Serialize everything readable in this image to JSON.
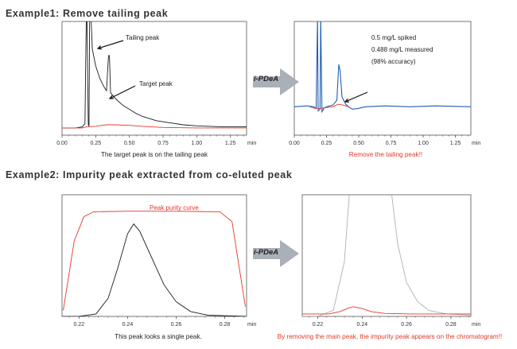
{
  "titles": {
    "example1": "Example1: Remove tailing peak",
    "example2": "Example2: Impurity peak extracted from co-eluted peak"
  },
  "arrow_label": "i-PDeA",
  "captions": {
    "c1": "The target peak is on the tailing peak",
    "c2": "Remove the tailing peak!!",
    "c3": "This peak looks a single peak.",
    "c4": "By removing the main peak, the impurity peak appears on the chromatogram!!"
  },
  "colors": {
    "axis": "#555555",
    "black_trace": "#1a1a1a",
    "red_trace": "#e8352a",
    "blue_trace": "#1f5fb0",
    "grey_trace": "#b0b0b0",
    "arrow_grey": "#aab0b8",
    "caption_red": "#e23a2a"
  },
  "chart_data": [
    {
      "id": "panel1",
      "type": "line",
      "xlabel": "min",
      "xlim": [
        0.0,
        1.37
      ],
      "xticks": [
        "0.00",
        "0.25",
        "0.50",
        "0.75",
        "1.00",
        "1.25"
      ],
      "annotations": [
        "Tailing peak",
        "Target peak"
      ],
      "series": [
        {
          "color": "black",
          "points": [
            [
              0.0,
              0.02
            ],
            [
              0.1,
              0.02
            ],
            [
              0.15,
              0.03
            ],
            [
              0.17,
              0.06
            ],
            [
              0.18,
              1.1
            ],
            [
              0.185,
              1.1
            ],
            [
              0.195,
              0.05
            ],
            [
              0.2,
              0.04
            ],
            [
              0.205,
              1.1
            ],
            [
              0.215,
              1.1
            ],
            [
              0.225,
              0.78
            ],
            [
              0.25,
              0.62
            ],
            [
              0.28,
              0.5
            ],
            [
              0.31,
              0.42
            ],
            [
              0.33,
              0.38
            ],
            [
              0.345,
              0.72
            ],
            [
              0.352,
              0.72
            ],
            [
              0.36,
              0.36
            ],
            [
              0.4,
              0.3
            ],
            [
              0.45,
              0.24
            ],
            [
              0.5,
              0.2
            ],
            [
              0.55,
              0.16
            ],
            [
              0.6,
              0.13
            ],
            [
              0.7,
              0.09
            ],
            [
              0.8,
              0.07
            ],
            [
              0.9,
              0.05
            ],
            [
              1.0,
              0.04
            ],
            [
              1.1,
              0.035
            ],
            [
              1.2,
              0.03
            ],
            [
              1.37,
              0.03
            ]
          ]
        },
        {
          "color": "red",
          "points": [
            [
              0.0,
              0.02
            ],
            [
              0.15,
              0.02
            ],
            [
              0.18,
              0.03
            ],
            [
              0.25,
              0.035
            ],
            [
              0.33,
              0.05
            ],
            [
              0.4,
              0.05
            ],
            [
              0.5,
              0.045
            ],
            [
              0.6,
              0.035
            ],
            [
              0.75,
              0.025
            ],
            [
              1.0,
              0.02
            ],
            [
              1.37,
              0.02
            ]
          ]
        }
      ]
    },
    {
      "id": "panel2",
      "type": "line",
      "xlabel": "min",
      "xlim": [
        0.0,
        1.37
      ],
      "xticks": [
        "0.00",
        "0.25",
        "0.50",
        "0.75",
        "1.00",
        "1.25"
      ],
      "annotations": [
        "0.5 mg/L spiked",
        "0.488 mg/L measured",
        "(98% accuracy)"
      ],
      "series": [
        {
          "color": "blue",
          "points": [
            [
              0.0,
              0.0
            ],
            [
              0.1,
              0.01
            ],
            [
              0.15,
              0.0
            ],
            [
              0.17,
              -0.02
            ],
            [
              0.18,
              1.1
            ],
            [
              0.185,
              -0.05
            ],
            [
              0.2,
              -0.03
            ],
            [
              0.205,
              1.1
            ],
            [
              0.215,
              -0.06
            ],
            [
              0.23,
              -0.02
            ],
            [
              0.25,
              0.0
            ],
            [
              0.3,
              0.02
            ],
            [
              0.33,
              0.08
            ],
            [
              0.345,
              0.52
            ],
            [
              0.355,
              0.45
            ],
            [
              0.37,
              0.12
            ],
            [
              0.4,
              0.03
            ],
            [
              0.42,
              0.0
            ],
            [
              0.45,
              -0.03
            ],
            [
              0.5,
              -0.02
            ],
            [
              0.55,
              0.0
            ],
            [
              0.7,
              0.01
            ],
            [
              0.9,
              0.0
            ],
            [
              1.1,
              0.01
            ],
            [
              1.37,
              0.0
            ]
          ]
        },
        {
          "color": "red",
          "points": [
            [
              0.12,
              0.0
            ],
            [
              0.16,
              -0.02
            ],
            [
              0.2,
              -0.02
            ],
            [
              0.25,
              -0.01
            ],
            [
              0.3,
              0.0
            ],
            [
              0.34,
              0.03
            ],
            [
              0.38,
              0.02
            ],
            [
              0.42,
              0.0
            ]
          ]
        }
      ]
    },
    {
      "id": "panel3",
      "type": "line",
      "xlabel": "min",
      "xlim": [
        0.213,
        0.289
      ],
      "xticks": [
        "0.22",
        "0.24",
        "0.26",
        "0.28"
      ],
      "annotations": [
        "Peak purity curve"
      ],
      "series": [
        {
          "name": "Peak purity curve",
          "color": "red",
          "points": [
            [
              0.2135,
              0.05
            ],
            [
              0.2155,
              0.3
            ],
            [
              0.218,
              0.62
            ],
            [
              0.222,
              0.82
            ],
            [
              0.226,
              0.86
            ],
            [
              0.24,
              0.865
            ],
            [
              0.26,
              0.865
            ],
            [
              0.278,
              0.86
            ],
            [
              0.283,
              0.78
            ],
            [
              0.286,
              0.4
            ],
            [
              0.2885,
              0.08
            ]
          ]
        },
        {
          "color": "black",
          "points": [
            [
              0.213,
              0.0
            ],
            [
              0.22,
              0.0
            ],
            [
              0.227,
              0.02
            ],
            [
              0.232,
              0.15
            ],
            [
              0.236,
              0.4
            ],
            [
              0.24,
              0.68
            ],
            [
              0.2425,
              0.76
            ],
            [
              0.245,
              0.7
            ],
            [
              0.25,
              0.48
            ],
            [
              0.255,
              0.26
            ],
            [
              0.26,
              0.12
            ],
            [
              0.266,
              0.04
            ],
            [
              0.273,
              0.01
            ],
            [
              0.289,
              0.0
            ]
          ]
        }
      ]
    },
    {
      "id": "panel4",
      "type": "line",
      "xlabel": "min",
      "xlim": [
        0.213,
        0.289
      ],
      "xticks": [
        "0.22",
        "0.24",
        "0.26",
        "0.28"
      ],
      "series": [
        {
          "color": "grey",
          "points": [
            [
              0.213,
              0.0
            ],
            [
              0.22,
              0.0
            ],
            [
              0.227,
              0.05
            ],
            [
              0.232,
              0.45
            ],
            [
              0.235,
              1.2
            ],
            [
              0.252,
              1.2
            ],
            [
              0.256,
              0.6
            ],
            [
              0.26,
              0.28
            ],
            [
              0.265,
              0.12
            ],
            [
              0.27,
              0.05
            ],
            [
              0.278,
              0.02
            ],
            [
              0.289,
              0.01
            ]
          ]
        },
        {
          "color": "red",
          "points": [
            [
              0.213,
              0.02
            ],
            [
              0.225,
              0.02
            ],
            [
              0.23,
              0.04
            ],
            [
              0.234,
              0.07
            ],
            [
              0.236,
              0.08
            ],
            [
              0.24,
              0.065
            ],
            [
              0.244,
              0.04
            ],
            [
              0.25,
              0.025
            ],
            [
              0.26,
              0.02
            ],
            [
              0.289,
              0.02
            ]
          ]
        }
      ]
    }
  ]
}
